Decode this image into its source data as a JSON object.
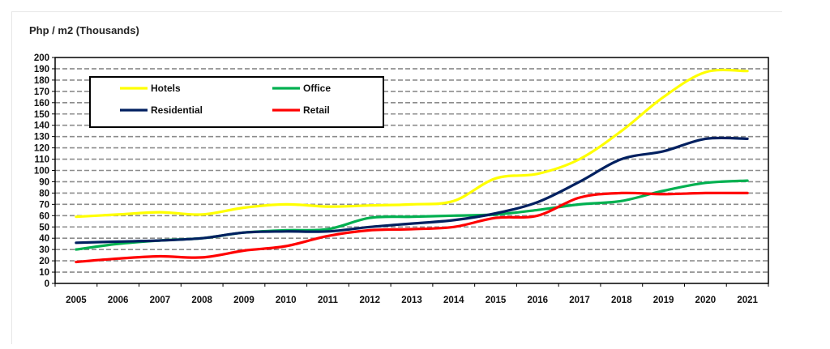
{
  "chart_data": {
    "type": "line",
    "ylabel": "Php / m2 (Thousands)",
    "x": [
      "2005",
      "2006",
      "2007",
      "2008",
      "2009",
      "2010",
      "2011",
      "2012",
      "2013",
      "2014",
      "2015",
      "2016",
      "2017",
      "2018",
      "2019",
      "2020",
      "2021"
    ],
    "ylim": [
      0,
      200
    ],
    "ytick_step": 10,
    "grid": true,
    "legend_position": "top-left",
    "series": [
      {
        "name": "Hotels",
        "color": "#ffff00",
        "values": [
          59,
          61,
          63,
          61,
          67,
          70,
          68,
          69,
          70,
          73,
          93,
          97,
          110,
          135,
          165,
          187,
          188
        ]
      },
      {
        "name": "Office",
        "color": "#00b050",
        "values": [
          30,
          35,
          38,
          40,
          45,
          47,
          48,
          58,
          59,
          60,
          61,
          65,
          70,
          73,
          82,
          89,
          91
        ]
      },
      {
        "name": "Residential",
        "color": "#002060",
        "values": [
          36,
          37,
          38,
          40,
          45,
          46,
          46,
          50,
          53,
          56,
          62,
          72,
          90,
          110,
          117,
          128,
          128
        ]
      },
      {
        "name": "Retail",
        "color": "#ff0000",
        "values": [
          19,
          22,
          24,
          23,
          29,
          33,
          42,
          47,
          48,
          50,
          58,
          60,
          76,
          80,
          79,
          80,
          80
        ]
      }
    ]
  }
}
